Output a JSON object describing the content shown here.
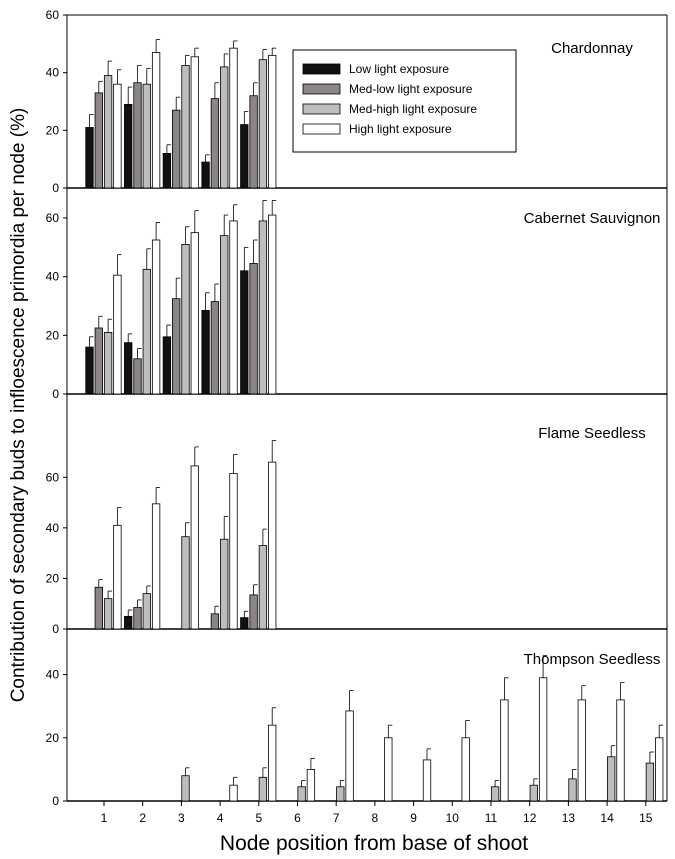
{
  "chart_data": {
    "type": "bar",
    "y_axis_label": "Contribution of secondary buds to infloescence primordia per node (%)",
    "x_axis_label": "Node position from base of shoot",
    "x_ticks": [
      "1",
      "2",
      "3",
      "4",
      "5",
      "6",
      "7",
      "8",
      "9",
      "10",
      "11",
      "12",
      "13",
      "14",
      "15"
    ],
    "series_names": [
      "Low light exposure",
      "Med-low light exposure",
      "Med-high light exposure",
      "High light exposure"
    ],
    "colors": {
      "low": "#111111",
      "medlow": "#8c8585",
      "medhigh": "#bdbdbd",
      "high": "#ffffff"
    },
    "legend": {
      "position": "top-right of first panel",
      "entries": [
        "Low light exposure",
        "Med-low light exposure",
        "Med-high light exposure",
        "High light exposure"
      ]
    },
    "panels": [
      {
        "title": "Chardonnay",
        "ylim": [
          0,
          60
        ],
        "yticks": [
          "0",
          "20",
          "40",
          "60"
        ],
        "series": [
          {
            "name": "Low light exposure",
            "nodes": [
              1,
              2,
              3,
              4,
              5
            ],
            "values": [
              21,
              29,
              12,
              9,
              22
            ],
            "errors": [
              4.5,
              6,
              3,
              2.5,
              4.5
            ]
          },
          {
            "name": "Med-low light exposure",
            "nodes": [
              1,
              2,
              3,
              4,
              5
            ],
            "values": [
              33,
              36.5,
              27,
              31,
              32
            ],
            "errors": [
              4,
              6,
              4.5,
              5.5,
              4.5
            ]
          },
          {
            "name": "Med-high light exposure",
            "nodes": [
              1,
              2,
              3,
              4,
              5
            ],
            "values": [
              39,
              36,
              42.5,
              42,
              44.5
            ],
            "errors": [
              5,
              5.5,
              3.5,
              4.5,
              3.5
            ]
          },
          {
            "name": "High light exposure",
            "nodes": [
              1,
              2,
              3,
              4,
              5
            ],
            "values": [
              36,
              47,
              45.5,
              48.5,
              46
            ],
            "errors": [
              5,
              4.5,
              3,
              2.5,
              2.5
            ]
          }
        ]
      },
      {
        "title": "Cabernet Sauvignon",
        "ylim": [
          0,
          60
        ],
        "yticks": [
          "0",
          "20",
          "40",
          "60"
        ],
        "series": [
          {
            "name": "Low light exposure",
            "nodes": [
              1,
              2,
              3,
              4,
              5
            ],
            "values": [
              16,
              17.5,
              19.5,
              28.5,
              42
            ],
            "errors": [
              3.5,
              3,
              4,
              6,
              8
            ]
          },
          {
            "name": "Med-low light exposure",
            "nodes": [
              1,
              2,
              3,
              4,
              5
            ],
            "values": [
              22.5,
              12,
              32.5,
              31.5,
              44.5
            ],
            "errors": [
              4,
              3.5,
              7,
              6,
              8
            ]
          },
          {
            "name": "Med-high light exposure",
            "nodes": [
              1,
              2,
              3,
              4,
              5
            ],
            "values": [
              21,
              42.5,
              51,
              54,
              59
            ],
            "errors": [
              4.5,
              7,
              6,
              7,
              7
            ]
          },
          {
            "name": "High light exposure",
            "nodes": [
              1,
              2,
              3,
              4,
              5
            ],
            "values": [
              40.5,
              52.5,
              55,
              59,
              61
            ],
            "errors": [
              7,
              6,
              7.5,
              5.5,
              5
            ]
          }
        ]
      },
      {
        "title": "Flame Seedless",
        "ylim": [
          0,
          70
        ],
        "yticks": [
          "0",
          "20",
          "40",
          "60"
        ],
        "series": [
          {
            "name": "Low light exposure",
            "nodes": [
              1,
              2,
              3,
              4,
              5
            ],
            "values": [
              0,
              5,
              0,
              0,
              4.5
            ],
            "errors": [
              0,
              2.5,
              0,
              0,
              2.5
            ]
          },
          {
            "name": "Med-low light exposure",
            "nodes": [
              1,
              2,
              3,
              4,
              5
            ],
            "values": [
              16.5,
              8.5,
              0,
              6,
              13.5
            ],
            "errors": [
              3,
              3,
              0,
              3,
              4
            ]
          },
          {
            "name": "Med-high light exposure",
            "nodes": [
              1,
              2,
              3,
              4,
              5
            ],
            "values": [
              12,
              14,
              36.5,
              35.5,
              33
            ],
            "errors": [
              3,
              3,
              5.5,
              9,
              6.5
            ]
          },
          {
            "name": "High light exposure",
            "nodes": [
              1,
              2,
              3,
              4,
              5
            ],
            "values": [
              41,
              49.5,
              64.5,
              61.5,
              66
            ],
            "errors": [
              7,
              6.5,
              7.5,
              7.5,
              8.5
            ]
          }
        ]
      },
      {
        "title": "Thompson Seedless",
        "ylim": [
          0,
          50
        ],
        "yticks": [
          "0",
          "20",
          "40"
        ],
        "series": [
          {
            "name": "Med-high light exposure",
            "nodes": [
              3,
              5,
              6,
              7,
              11,
              12,
              13,
              14,
              15
            ],
            "values": [
              8,
              7.5,
              4.5,
              4.5,
              4.5,
              5,
              7,
              14,
              12
            ],
            "errors": [
              2.5,
              3,
              2,
              2,
              2,
              2,
              3,
              3.5,
              3.5
            ]
          },
          {
            "name": "High light exposure",
            "nodes": [
              4,
              5,
              6,
              7,
              8,
              9,
              10,
              11,
              12,
              13,
              14,
              15
            ],
            "values": [
              5,
              24,
              10,
              28.5,
              20,
              13,
              20,
              32,
              39,
              32,
              32,
              20
            ],
            "errors": [
              2.5,
              5.5,
              3.5,
              6.5,
              4,
              3.5,
              5.5,
              7,
              7,
              4.5,
              5.5,
              4
            ]
          }
        ]
      }
    ]
  }
}
